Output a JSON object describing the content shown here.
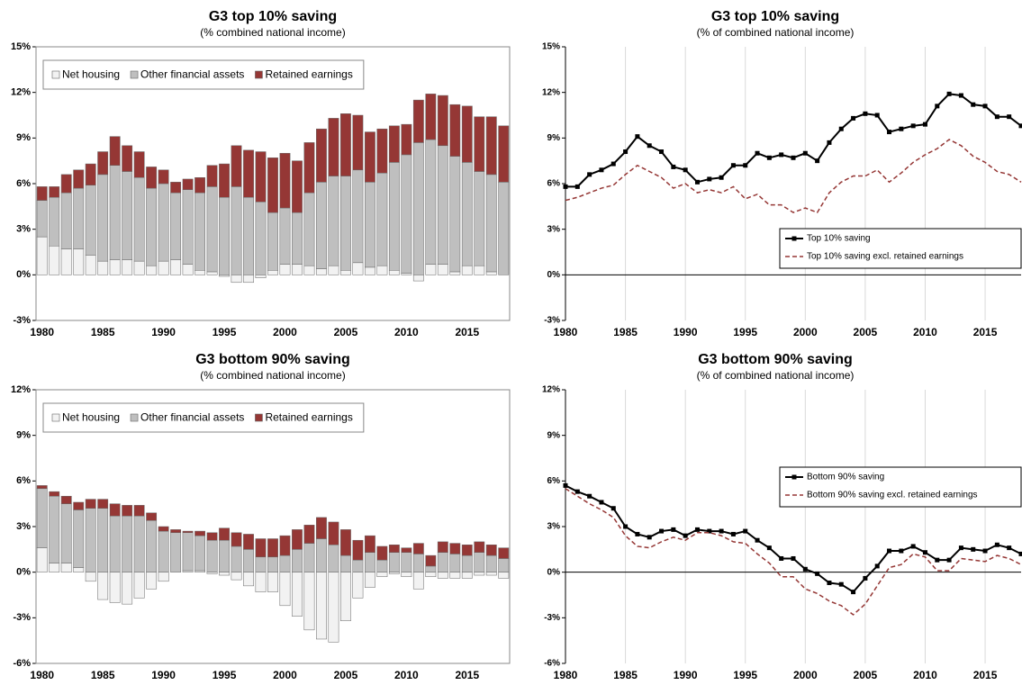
{
  "chart_data": [
    {
      "type": "bar",
      "stacked": true,
      "title": "G3 top 10% saving",
      "subtitle": "(% combined national income)",
      "categories": [
        "1980",
        null,
        null,
        null,
        null,
        "1985",
        null,
        null,
        null,
        null,
        "1990",
        null,
        null,
        null,
        null,
        "1995",
        null,
        null,
        null,
        null,
        "2000",
        null,
        null,
        null,
        null,
        "2005",
        null,
        null,
        null,
        null,
        "2010",
        null,
        null,
        null,
        null,
        "2015",
        null,
        null,
        null
      ],
      "series": [
        {
          "name": "Net housing",
          "color": "#f2f2f2",
          "values": [
            2.5,
            1.9,
            1.7,
            1.7,
            1.3,
            0.9,
            1.0,
            1.0,
            0.9,
            0.6,
            0.9,
            1.0,
            0.7,
            0.3,
            0.2,
            -0.1,
            -0.5,
            -0.5,
            -0.2,
            0.3,
            0.7,
            0.7,
            0.6,
            0.4,
            0.6,
            0.3,
            0.8,
            0.5,
            0.6,
            0.3,
            0.1,
            -0.4,
            0.7,
            0.7,
            0.2,
            0.6,
            0.6,
            0.2,
            0.0
          ]
        },
        {
          "name": "Other financial assets",
          "color": "#bfbfbf",
          "values": [
            2.4,
            3.2,
            3.7,
            4.0,
            4.6,
            5.7,
            6.2,
            5.8,
            5.5,
            5.1,
            5.1,
            4.4,
            4.9,
            5.1,
            5.6,
            5.1,
            5.8,
            5.1,
            4.8,
            3.8,
            3.7,
            3.4,
            4.8,
            5.7,
            5.9,
            6.2,
            6.1,
            5.6,
            6.1,
            7.1,
            7.8,
            8.7,
            8.2,
            7.8,
            7.6,
            6.8,
            6.2,
            6.4,
            6.1
          ]
        },
        {
          "name": "Retained earnings",
          "color": "#953735",
          "values": [
            0.9,
            0.7,
            1.2,
            1.2,
            1.4,
            1.5,
            1.9,
            1.7,
            1.7,
            1.4,
            0.9,
            0.7,
            0.7,
            1.0,
            1.4,
            2.2,
            2.7,
            3.1,
            3.3,
            3.6,
            3.6,
            3.4,
            3.3,
            3.5,
            3.8,
            4.1,
            3.6,
            3.3,
            2.9,
            2.4,
            2.0,
            2.8,
            3.0,
            3.3,
            3.4,
            3.7,
            3.6,
            3.8,
            3.7
          ]
        }
      ],
      "ylim": [
        -3,
        15
      ],
      "yticks": [
        {
          "value": -3,
          "label": "-3%"
        },
        {
          "value": 0,
          "label": "0%"
        },
        {
          "value": 3,
          "label": "3%"
        },
        {
          "value": 6,
          "label": "6%"
        },
        {
          "value": 9,
          "label": "9%"
        },
        {
          "value": 12,
          "label": "12%"
        },
        {
          "value": 15,
          "label": "15%"
        }
      ],
      "legend": "upper left"
    },
    {
      "type": "line",
      "title": "G3 top 10% saving",
      "subtitle": "(% of combined national income)",
      "x": [
        1980,
        1981,
        1982,
        1983,
        1984,
        1985,
        1986,
        1987,
        1988,
        1989,
        1990,
        1991,
        1992,
        1993,
        1994,
        1995,
        1996,
        1997,
        1998,
        1999,
        2000,
        2001,
        2002,
        2003,
        2004,
        2005,
        2006,
        2007,
        2008,
        2009,
        2010,
        2011,
        2012,
        2013,
        2014,
        2015,
        2016,
        2017,
        2018
      ],
      "series": [
        {
          "name": "Top 10% saving",
          "color": "#000000",
          "linestyle": "solid",
          "marker": "square",
          "values": [
            5.8,
            5.8,
            6.6,
            6.9,
            7.3,
            8.1,
            9.1,
            8.5,
            8.1,
            7.1,
            6.9,
            6.1,
            6.3,
            6.4,
            7.2,
            7.2,
            8.0,
            7.7,
            7.9,
            7.7,
            8.0,
            7.5,
            8.7,
            9.6,
            10.3,
            10.6,
            10.5,
            9.4,
            9.6,
            9.8,
            9.9,
            11.1,
            11.9,
            11.8,
            11.2,
            11.1,
            10.4,
            10.4,
            9.8
          ]
        },
        {
          "name": "Top 10% saving excl. retained earnings",
          "color": "#953735",
          "linestyle": "dashed",
          "marker": "none",
          "values": [
            4.9,
            5.1,
            5.4,
            5.7,
            5.9,
            6.6,
            7.2,
            6.8,
            6.4,
            5.7,
            6.0,
            5.4,
            5.6,
            5.4,
            5.8,
            5.0,
            5.3,
            4.6,
            4.6,
            4.1,
            4.4,
            4.1,
            5.4,
            6.1,
            6.5,
            6.5,
            6.9,
            6.1,
            6.7,
            7.4,
            7.9,
            8.3,
            8.9,
            8.5,
            7.8,
            7.4,
            6.8,
            6.6,
            6.1
          ]
        }
      ],
      "xlim": [
        1980,
        2018
      ],
      "xticks": [
        1980,
        1985,
        1990,
        1995,
        2000,
        2005,
        2010,
        2015
      ],
      "ylim": [
        -3,
        15
      ],
      "yticks": [
        {
          "value": -3,
          "label": "-3%"
        },
        {
          "value": 0,
          "label": "0%"
        },
        {
          "value": 3,
          "label": "3%"
        },
        {
          "value": 6,
          "label": "6%"
        },
        {
          "value": 9,
          "label": "9%"
        },
        {
          "value": 12,
          "label": "12%"
        },
        {
          "value": 15,
          "label": "15%"
        }
      ],
      "grid": true,
      "legend": "lower right"
    },
    {
      "type": "bar",
      "stacked": true,
      "title": "G3 bottom 90% saving",
      "subtitle": "(% combined national income)",
      "categories": [
        "1980",
        null,
        null,
        null,
        null,
        "1985",
        null,
        null,
        null,
        null,
        "1990",
        null,
        null,
        null,
        null,
        "1995",
        null,
        null,
        null,
        null,
        "2000",
        null,
        null,
        null,
        null,
        "2005",
        null,
        null,
        null,
        null,
        "2010",
        null,
        null,
        null,
        null,
        "2015",
        null,
        null,
        null
      ],
      "series": [
        {
          "name": "Net housing",
          "color": "#f2f2f2",
          "values": [
            1.6,
            0.6,
            0.6,
            0.3,
            -0.6,
            -1.8,
            -2.0,
            -2.1,
            -1.7,
            -1.1,
            -0.6,
            0.0,
            0.1,
            0.1,
            -0.1,
            -0.2,
            -0.5,
            -0.9,
            -1.3,
            -1.3,
            -2.2,
            -2.9,
            -3.8,
            -4.4,
            -4.6,
            -3.2,
            -1.7,
            -1.0,
            -0.3,
            -0.1,
            -0.3,
            -1.1,
            -0.3,
            -0.4,
            -0.4,
            -0.4,
            -0.2,
            -0.2,
            -0.4
          ]
        },
        {
          "name": "Other financial assets",
          "color": "#bfbfbf",
          "values": [
            3.9,
            4.4,
            3.9,
            3.8,
            4.2,
            4.2,
            3.7,
            3.7,
            3.7,
            3.4,
            2.7,
            2.6,
            2.5,
            2.3,
            2.1,
            2.1,
            1.7,
            1.5,
            1.0,
            1.0,
            1.1,
            1.5,
            1.9,
            2.2,
            1.8,
            1.1,
            0.8,
            1.3,
            0.8,
            1.3,
            1.3,
            1.2,
            0.4,
            1.3,
            1.2,
            1.1,
            1.3,
            1.1,
            0.9
          ]
        },
        {
          "name": "Retained earnings",
          "color": "#953735",
          "values": [
            0.2,
            0.3,
            0.5,
            0.5,
            0.6,
            0.6,
            0.8,
            0.7,
            0.7,
            0.5,
            0.3,
            0.2,
            0.1,
            0.3,
            0.5,
            0.8,
            0.9,
            1.0,
            1.2,
            1.2,
            1.3,
            1.3,
            1.2,
            1.4,
            1.5,
            1.7,
            1.3,
            1.1,
            0.9,
            0.5,
            0.3,
            0.7,
            0.7,
            0.7,
            0.7,
            0.7,
            0.7,
            0.7,
            0.7
          ]
        }
      ],
      "ylim": [
        -6,
        12
      ],
      "yticks": [
        {
          "value": -6,
          "label": "-6%"
        },
        {
          "value": -3,
          "label": "-3%"
        },
        {
          "value": 0,
          "label": "0%"
        },
        {
          "value": 3,
          "label": "3%"
        },
        {
          "value": 6,
          "label": "6%"
        },
        {
          "value": 9,
          "label": "9%"
        },
        {
          "value": 12,
          "label": "12%"
        }
      ],
      "legend": "upper left"
    },
    {
      "type": "line",
      "title": "G3 bottom 90% saving",
      "subtitle": "(% of combined national income)",
      "x": [
        1980,
        1981,
        1982,
        1983,
        1984,
        1985,
        1986,
        1987,
        1988,
        1989,
        1990,
        1991,
        1992,
        1993,
        1994,
        1995,
        1996,
        1997,
        1998,
        1999,
        2000,
        2001,
        2002,
        2003,
        2004,
        2005,
        2006,
        2007,
        2008,
        2009,
        2010,
        2011,
        2012,
        2013,
        2014,
        2015,
        2016,
        2017,
        2018
      ],
      "series": [
        {
          "name": "Bottom 90% saving",
          "color": "#000000",
          "linestyle": "solid",
          "marker": "square",
          "values": [
            5.7,
            5.3,
            5.0,
            4.6,
            4.2,
            3.0,
            2.5,
            2.3,
            2.7,
            2.8,
            2.4,
            2.8,
            2.7,
            2.7,
            2.5,
            2.7,
            2.1,
            1.6,
            0.9,
            0.9,
            0.2,
            -0.1,
            -0.7,
            -0.8,
            -1.3,
            -0.4,
            0.4,
            1.4,
            1.4,
            1.7,
            1.3,
            0.8,
            0.8,
            1.6,
            1.5,
            1.4,
            1.8,
            1.6,
            1.2
          ]
        },
        {
          "name": "Bottom 90% saving excl. retained earnings",
          "color": "#953735",
          "linestyle": "dashed",
          "marker": "none",
          "values": [
            5.5,
            5.0,
            4.5,
            4.1,
            3.6,
            2.4,
            1.7,
            1.6,
            2.0,
            2.3,
            2.1,
            2.6,
            2.6,
            2.4,
            2.0,
            1.9,
            1.2,
            0.6,
            -0.3,
            -0.3,
            -1.1,
            -1.4,
            -1.9,
            -2.2,
            -2.8,
            -2.1,
            -0.9,
            0.3,
            0.5,
            1.2,
            1.0,
            0.1,
            0.1,
            0.9,
            0.8,
            0.7,
            1.1,
            0.9,
            0.5
          ]
        }
      ],
      "xlim": [
        1980,
        2018
      ],
      "xticks": [
        1980,
        1985,
        1990,
        1995,
        2000,
        2005,
        2010,
        2015
      ],
      "ylim": [
        -6,
        12
      ],
      "yticks": [
        {
          "value": -6,
          "label": "-6%"
        },
        {
          "value": -3,
          "label": "-3%"
        },
        {
          "value": 0,
          "label": "0%"
        },
        {
          "value": 3,
          "label": "3%"
        },
        {
          "value": 6,
          "label": "6%"
        },
        {
          "value": 9,
          "label": "9%"
        },
        {
          "value": 12,
          "label": "12%"
        }
      ],
      "grid": true,
      "legend": "upper right"
    }
  ]
}
